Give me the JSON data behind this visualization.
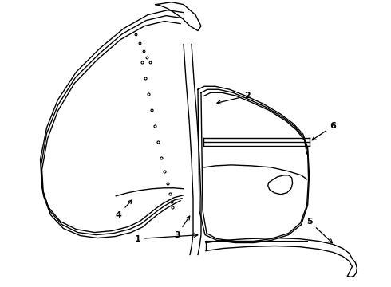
{
  "background": "#ffffff",
  "line_color": "#000000",
  "line_width": 1.0,
  "label_fontsize": 8,
  "arrow_color": "#000000",
  "figsize": [
    4.9,
    3.6
  ],
  "dpi": 100
}
